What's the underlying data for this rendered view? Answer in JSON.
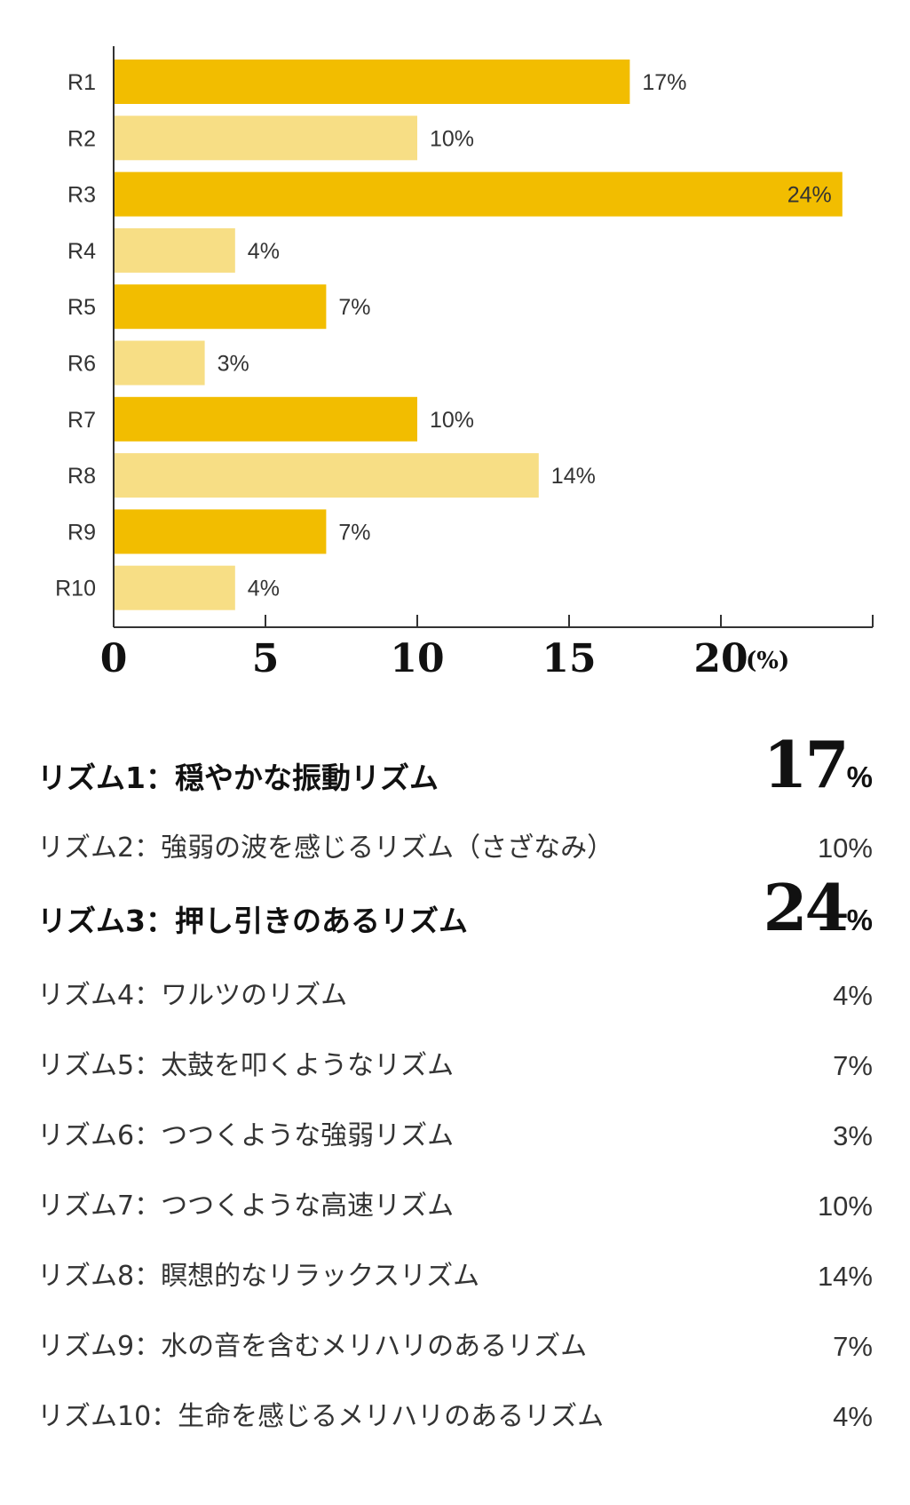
{
  "chart_data": {
    "type": "bar",
    "orientation": "horizontal",
    "categories": [
      "R1",
      "R2",
      "R3",
      "R4",
      "R5",
      "R6",
      "R7",
      "R8",
      "R9",
      "R10"
    ],
    "values": [
      17,
      10,
      24,
      4,
      7,
      3,
      10,
      14,
      7,
      4
    ],
    "value_labels": [
      "17%",
      "10%",
      "24%",
      "4%",
      "7%",
      "3%",
      "10%",
      "14%",
      "7%",
      "4%"
    ],
    "x_ticks": [
      "0",
      "5",
      "10",
      "15",
      "20"
    ],
    "x_unit": "(%)",
    "xlim": [
      0,
      25
    ],
    "colors": {
      "odd": "#F2BD00",
      "even": "#F7DE85",
      "axis": "#333333"
    },
    "grid": false
  },
  "legend": [
    {
      "name": "リズム1：穏やかな振動リズム",
      "value": "17",
      "unit": "%",
      "highlight": true
    },
    {
      "name": "リズム2：強弱の波を感じるリズム（さざなみ）",
      "value": "10",
      "unit": "%",
      "highlight": false
    },
    {
      "name": "リズム3：押し引きのあるリズム",
      "value": "24",
      "unit": "%",
      "highlight": true
    },
    {
      "name": "リズム4：ワルツのリズム",
      "value": "4",
      "unit": "%",
      "highlight": false
    },
    {
      "name": "リズム5：太鼓を叩くようなリズム",
      "value": "7",
      "unit": "%",
      "highlight": false
    },
    {
      "name": "リズム6：つつくような強弱リズム",
      "value": "3",
      "unit": "%",
      "highlight": false
    },
    {
      "name": "リズム7：つつくような高速リズム",
      "value": "10",
      "unit": "%",
      "highlight": false
    },
    {
      "name": "リズム8：瞑想的なリラックスリズム",
      "value": "14",
      "unit": "%",
      "highlight": false
    },
    {
      "name": "リズム9：水の音を含むメリハリのあるリズム",
      "value": "7",
      "unit": "%",
      "highlight": false
    },
    {
      "name": "リズム10：生命を感じるメリハリのあるリズム",
      "value": "4",
      "unit": "%",
      "highlight": false
    }
  ]
}
